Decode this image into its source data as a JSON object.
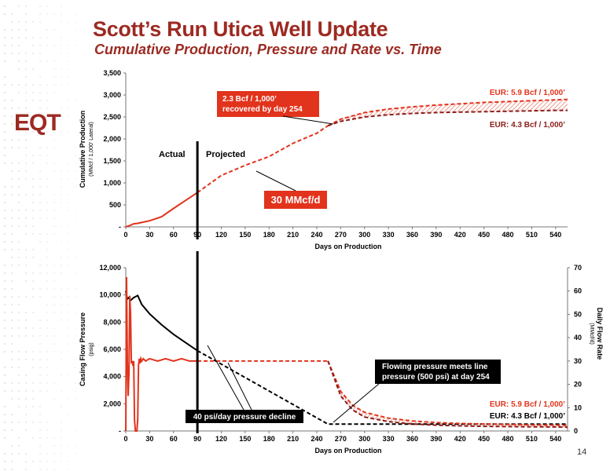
{
  "slide": {
    "title": "Scott’s Run Utica Well Update",
    "subtitle": "Cumulative Production, Pressure and Rate vs. Time",
    "logo": "EQT",
    "page_number": "14"
  },
  "colors": {
    "red": "#e2331c",
    "dark_red": "#8b1d1a",
    "black": "#000000",
    "brand": "#9c2a22"
  },
  "chart_data": [
    {
      "type": "line",
      "xlabel": "Days on Production",
      "ylabel": "Cumulative Production",
      "ylabel_sub": "(MMcf / 1,000’ Lateral)",
      "xlim": [
        0,
        555
      ],
      "ylim": [
        0,
        3500
      ],
      "x_ticks": [
        "0",
        "30",
        "60",
        "90",
        "120",
        "150",
        "180",
        "210",
        "240",
        "270",
        "300",
        "330",
        "360",
        "390",
        "420",
        "450",
        "480",
        "510",
        "540"
      ],
      "y_ticks": [
        "-",
        "500",
        "1,000",
        "1,500",
        "2,000",
        "2,500",
        "3,000",
        "3,500"
      ],
      "divider_day": 90,
      "region_labels": {
        "actual": "Actual",
        "projected": "Projected"
      },
      "series": [
        {
          "name": "Actual",
          "style": "solid",
          "color": "#e2331c",
          "x": [
            0,
            5,
            10,
            15,
            20,
            30,
            45,
            60,
            75,
            90
          ],
          "y": [
            0,
            30,
            70,
            80,
            100,
            140,
            230,
            420,
            600,
            780
          ]
        },
        {
          "name": "Projected",
          "style": "dashed",
          "color": "#e2331c",
          "x": [
            90,
            120,
            150,
            180,
            210,
            240,
            254
          ],
          "y": [
            780,
            1170,
            1400,
            1600,
            1900,
            2130,
            2300
          ]
        },
        {
          "name": "EUR: 5.9 Bcf / 1,000’",
          "style": "dashed",
          "color": "#e2331c",
          "x": [
            254,
            270,
            300,
            330,
            360,
            390,
            420,
            450,
            480,
            510,
            540,
            555
          ],
          "y": [
            2300,
            2450,
            2600,
            2680,
            2730,
            2770,
            2800,
            2830,
            2850,
            2870,
            2890,
            2900
          ]
        },
        {
          "name": "EUR: 4.3 Bcf / 1,000’",
          "style": "dashed",
          "color": "#8b1d1a",
          "x": [
            254,
            270,
            300,
            330,
            360,
            390,
            420,
            450,
            480,
            510,
            540,
            555
          ],
          "y": [
            2300,
            2400,
            2500,
            2550,
            2580,
            2600,
            2610,
            2620,
            2630,
            2640,
            2650,
            2650
          ]
        }
      ],
      "annotations": {
        "callout_recovered": "2.3 Bcf / 1,000’ recovered by day 254",
        "callout_recovered_line1": "2.3 Bcf / 1,000’",
        "callout_recovered_line2": "recovered by day 254",
        "callout_rate": "30 MMcf/d",
        "eur_high": "EUR: 5.9 Bcf / 1,000’",
        "eur_low": "EUR: 4.3 Bcf / 1,000’"
      }
    },
    {
      "type": "line",
      "xlabel": "Days on Production",
      "ylabel": "Casing Flow Pressure",
      "ylabel_sub": "(psig)",
      "y2label": "Daily Flow Rate",
      "y2label_sub": "(MMcf/d)",
      "xlim": [
        0,
        555
      ],
      "ylim": [
        0,
        12000
      ],
      "y2lim": [
        0,
        70
      ],
      "x_ticks": [
        "0",
        "30",
        "60",
        "90",
        "120",
        "150",
        "180",
        "210",
        "240",
        "270",
        "300",
        "330",
        "360",
        "390",
        "420",
        "450",
        "480",
        "510",
        "540"
      ],
      "y_ticks": [
        "-",
        "2,000",
        "4,000",
        "6,000",
        "8,000",
        "10,000",
        "12,000"
      ],
      "y2_ticks": [
        "0",
        "10",
        "20",
        "30",
        "40",
        "50",
        "60",
        "70"
      ],
      "divider_day": 90,
      "series": [
        {
          "name": "Pressure (actual)",
          "style": "solid",
          "color": "#000000",
          "axis": "left",
          "x": [
            0,
            2,
            4,
            6,
            8,
            10,
            15,
            20,
            30,
            45,
            60,
            75,
            90
          ],
          "y": [
            10300,
            9700,
            9800,
            9600,
            9700,
            9800,
            9950,
            9300,
            8600,
            7800,
            7100,
            6500,
            5900
          ]
        },
        {
          "name": "Pressure (projected)",
          "style": "dashed",
          "color": "#000000",
          "axis": "left",
          "x": [
            90,
            254,
            555
          ],
          "y": [
            5900,
            500,
            500
          ]
        },
        {
          "name": "Rate (actual)",
          "style": "solid",
          "color": "#e2331c",
          "axis": "right",
          "x": [
            0,
            1,
            2,
            3,
            4,
            5,
            6,
            7,
            8,
            9,
            10,
            11,
            12,
            13,
            14,
            15,
            16,
            17,
            18,
            19,
            20,
            22,
            25,
            30,
            40,
            50,
            60,
            70,
            80,
            90
          ],
          "y": [
            0,
            66,
            30,
            15,
            25,
            58,
            50,
            29,
            30,
            28,
            30,
            5,
            0,
            0,
            0,
            5,
            28,
            31,
            29,
            31,
            30,
            31,
            30,
            31,
            30,
            31,
            30,
            31,
            30,
            30
          ]
        },
        {
          "name": "Rate (projected)",
          "style": "dashed",
          "color": "#e2331c",
          "axis": "right",
          "x": [
            90,
            254
          ],
          "y": [
            30,
            30
          ]
        },
        {
          "name": "EUR: 5.9 Bcf / 1,000’",
          "style": "dashed",
          "color": "#e2331c",
          "axis": "right",
          "x": [
            254,
            270,
            285,
            300,
            330,
            360,
            390,
            420,
            450,
            480,
            510,
            540,
            555
          ],
          "y": [
            30,
            17,
            11,
            8,
            5.5,
            4.3,
            3.6,
            3.2,
            3.0,
            2.8,
            2.6,
            2.5,
            2.4
          ]
        },
        {
          "name": "EUR: 4.3 Bcf / 1,000’",
          "style": "dashed",
          "color": "#8b1d1a",
          "axis": "right",
          "x": [
            254,
            270,
            285,
            300,
            330,
            360,
            390,
            420,
            450,
            480,
            510,
            540,
            555
          ],
          "y": [
            30,
            15,
            9,
            6,
            4,
            3,
            2.5,
            2.2,
            2.0,
            1.9,
            1.8,
            1.7,
            1.6
          ]
        }
      ],
      "annotations": {
        "callout_decline": "40 psi/day pressure decline",
        "callout_line_pressure": "Flowing pressure meets line pressure (500 psi) at day 254",
        "callout_line_pressure_line1": "Flowing pressure meets line",
        "callout_line_pressure_line2": "pressure (500 psi) at day 254",
        "eur_high": "EUR: 5.9 Bcf / 1,000’",
        "eur_low": "EUR: 4.3 Bcf / 1,000’"
      }
    }
  ]
}
